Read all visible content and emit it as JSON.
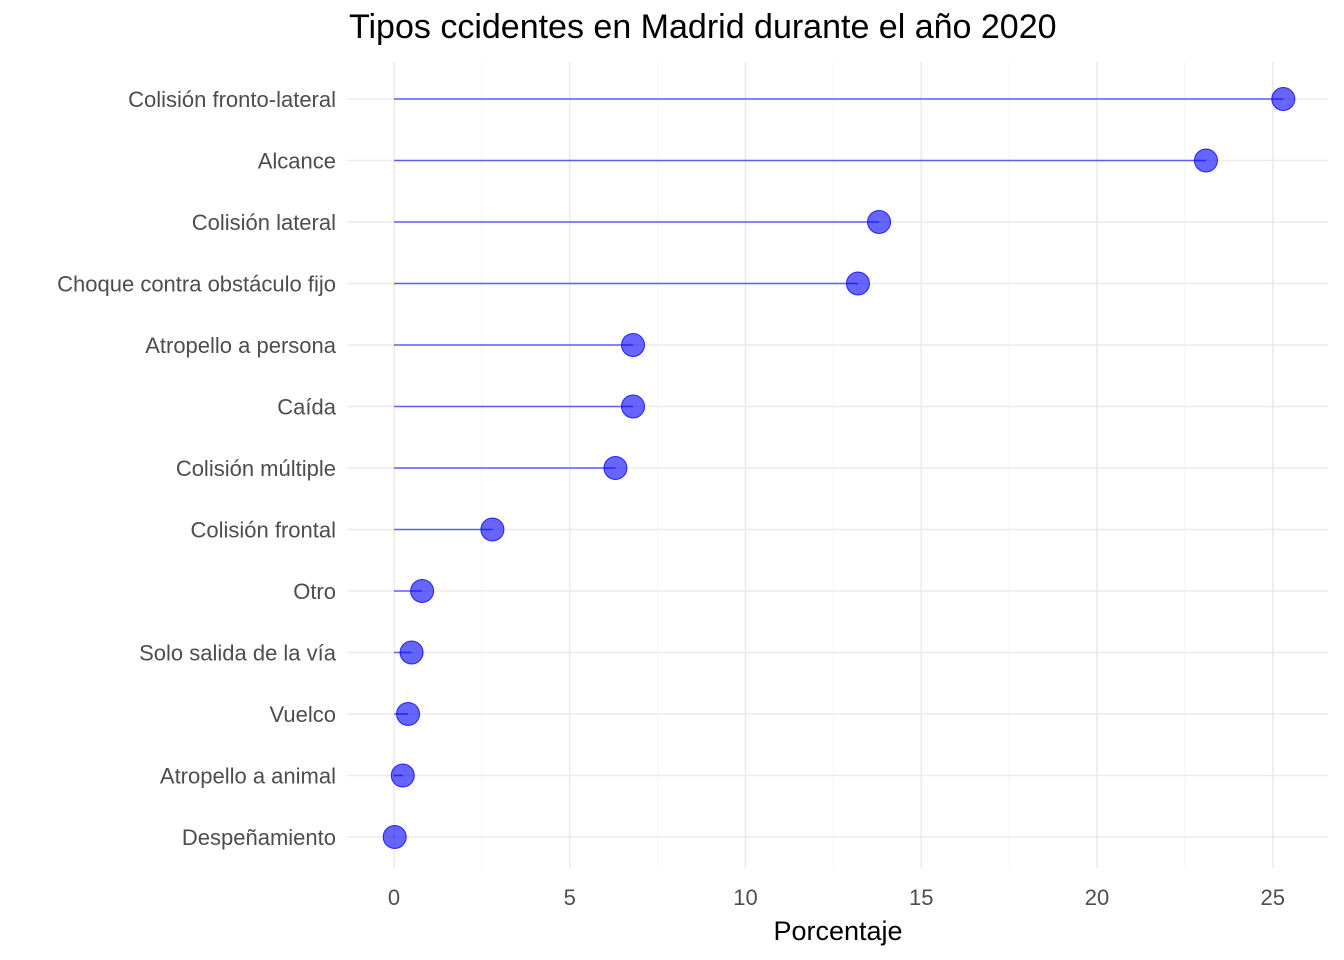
{
  "chart_data": {
    "type": "lollipop",
    "title": "Tipos ccidentes en Madrid durante el año 2020",
    "xlabel": "Porcentaje",
    "ylabel": "",
    "xlim": [
      0,
      26.5
    ],
    "x_ticks": [
      0,
      5,
      10,
      15,
      20,
      25
    ],
    "orientation": "horizontal",
    "grid": true,
    "color": "#0000ff",
    "categories": [
      "Colisión fronto-lateral",
      "Alcance",
      "Colisión lateral",
      "Choque contra obstáculo fijo",
      "Atropello a persona",
      "Caída",
      "Colisión múltiple",
      "Colisión frontal",
      "Otro",
      "Solo salida de la vía",
      "Vuelco",
      "Atropello a animal",
      "Despeñamiento"
    ],
    "values": [
      25.3,
      23.1,
      13.8,
      13.2,
      6.8,
      6.8,
      6.3,
      2.8,
      0.8,
      0.5,
      0.4,
      0.25,
      0.02
    ]
  }
}
